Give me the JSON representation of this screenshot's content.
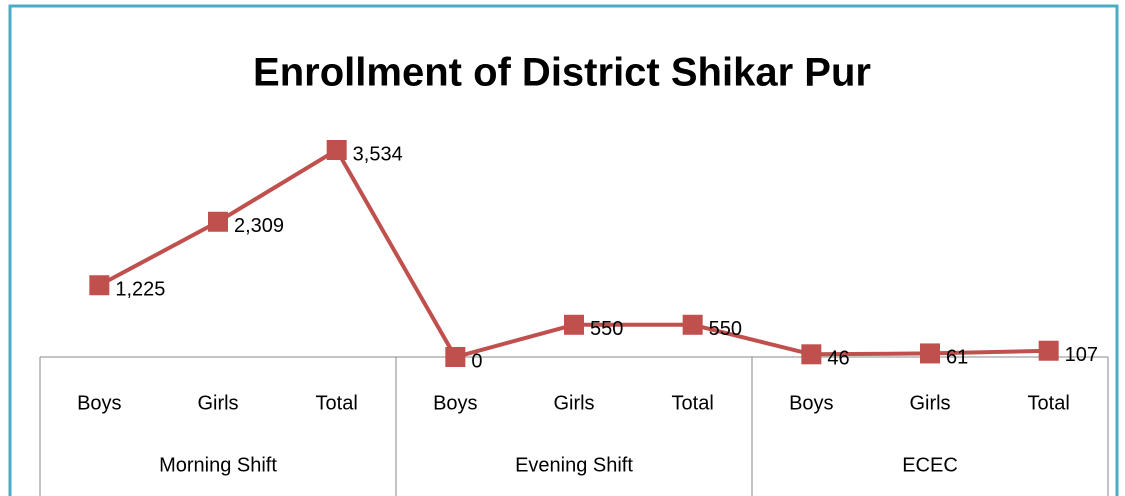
{
  "chart_data": {
    "type": "line",
    "title": "Enrollment of District Shikar Pur",
    "categories": [
      "Boys",
      "Girls",
      "Total",
      "Boys",
      "Girls",
      "Total",
      "Boys",
      "Girls",
      "Total"
    ],
    "groups": [
      "Morning Shift",
      "Evening Shift",
      "ECEC"
    ],
    "values": [
      1225,
      2309,
      3534,
      0,
      550,
      550,
      46,
      61,
      107
    ],
    "value_labels": [
      "1,225",
      "2,309",
      "3,534",
      "0",
      "550",
      "550",
      "46",
      "61",
      "107"
    ],
    "color": "#c0504d"
  }
}
